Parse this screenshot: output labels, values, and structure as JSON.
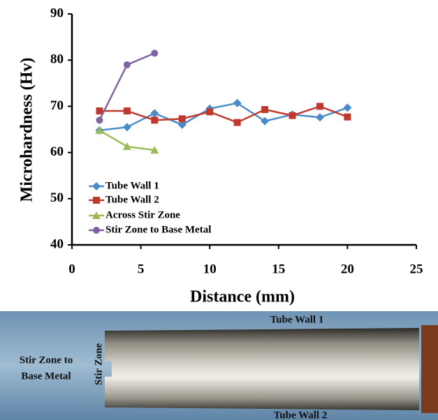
{
  "chart_data": {
    "type": "line",
    "xlabel": "Distance (mm)",
    "ylabel": "Microhardness (Hv)",
    "xlim": [
      0,
      25
    ],
    "xticks": [
      0,
      5,
      10,
      15,
      20,
      25
    ],
    "ylim": [
      40,
      90
    ],
    "yticks": [
      40,
      50,
      60,
      70,
      80,
      90
    ],
    "grid": false,
    "legend": "lower left",
    "series": [
      {
        "name": "Tube Wall 1",
        "color": "#4a8bc8",
        "marker": "diamond",
        "x": [
          2,
          4,
          6,
          8,
          10,
          12,
          14,
          16,
          18,
          20
        ],
        "values": [
          64.8,
          65.5,
          68.5,
          66,
          69.5,
          70.7,
          66.8,
          68.2,
          67.6,
          69.7
        ]
      },
      {
        "name": "Tube Wall 2",
        "color": "#c0392f",
        "marker": "square",
        "x": [
          2,
          4,
          6,
          8,
          10,
          12,
          14,
          16,
          18,
          20
        ],
        "values": [
          69,
          69,
          67,
          67.3,
          68.8,
          66.5,
          69.3,
          68,
          70,
          67.7
        ]
      },
      {
        "name": "Across Stir Zone",
        "color": "#9bbb59",
        "marker": "triangle",
        "x": [
          2,
          4,
          6
        ],
        "values": [
          64.8,
          61.3,
          60.5
        ]
      },
      {
        "name": "Stir Zone to Base Metal",
        "color": "#8064a2",
        "marker": "circle",
        "x": [
          2,
          4,
          6
        ],
        "values": [
          67,
          79,
          81.5
        ]
      }
    ]
  },
  "photo": {
    "labels": [
      "Tube Wall 1",
      "Tube Wall 2",
      "Stir Zone",
      "Stir Zone to",
      "Base Metal"
    ]
  }
}
